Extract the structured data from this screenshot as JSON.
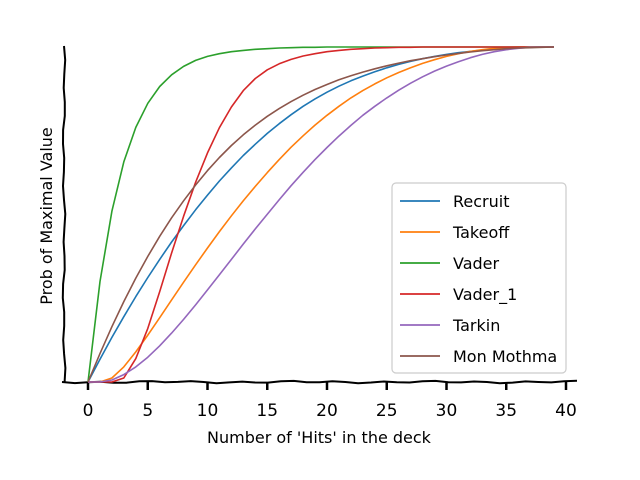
{
  "chart_data": {
    "type": "line",
    "title": "",
    "xlabel": "Number of 'Hits' in the deck",
    "ylabel": "Prob of Maximal Value",
    "xlim": [
      -2,
      41
    ],
    "ylim": [
      0,
      1
    ],
    "xticks": [
      0,
      5,
      10,
      15,
      20,
      25,
      30,
      35,
      40
    ],
    "yticks_shown": false,
    "grid": false,
    "legend_position": "lower-right",
    "x": [
      0,
      1,
      2,
      3,
      4,
      5,
      6,
      7,
      8,
      9,
      10,
      11,
      12,
      13,
      14,
      15,
      16,
      17,
      18,
      19,
      20,
      21,
      22,
      23,
      24,
      25,
      26,
      27,
      28,
      29,
      30,
      31,
      32,
      33,
      34,
      35,
      36,
      37,
      38,
      39
    ],
    "series": [
      {
        "name": "Recruit",
        "color": "#1f77b4",
        "values": [
          0.0,
          0.068,
          0.133,
          0.195,
          0.255,
          0.312,
          0.366,
          0.418,
          0.467,
          0.514,
          0.558,
          0.6,
          0.639,
          0.676,
          0.71,
          0.742,
          0.771,
          0.798,
          0.823,
          0.845,
          0.865,
          0.883,
          0.899,
          0.913,
          0.926,
          0.938,
          0.948,
          0.957,
          0.965,
          0.972,
          0.978,
          0.983,
          0.987,
          0.991,
          0.994,
          0.996,
          0.998,
          0.999,
          1.0,
          1.0
        ]
      },
      {
        "name": "Takeoff",
        "color": "#ff7f0e",
        "values": [
          0.0,
          0.0,
          0.012,
          0.045,
          0.09,
          0.14,
          0.192,
          0.245,
          0.298,
          0.35,
          0.4,
          0.449,
          0.496,
          0.541,
          0.584,
          0.625,
          0.664,
          0.701,
          0.735,
          0.767,
          0.796,
          0.823,
          0.848,
          0.87,
          0.89,
          0.908,
          0.924,
          0.938,
          0.951,
          0.962,
          0.972,
          0.98,
          0.987,
          0.992,
          0.996,
          0.999,
          1.0,
          1.0,
          1.0,
          1.0
        ]
      },
      {
        "name": "Vader",
        "color": "#2ca02c",
        "values": [
          0.0,
          0.3,
          0.51,
          0.657,
          0.76,
          0.832,
          0.882,
          0.917,
          0.942,
          0.96,
          0.972,
          0.98,
          0.986,
          0.99,
          0.993,
          0.995,
          0.997,
          0.998,
          0.999,
          0.999,
          1.0,
          1.0,
          1.0,
          1.0,
          1.0,
          1.0,
          1.0,
          1.0,
          1.0,
          1.0,
          1.0,
          1.0,
          1.0,
          1.0,
          1.0,
          1.0,
          1.0,
          1.0,
          1.0,
          1.0
        ]
      },
      {
        "name": "Vader_1",
        "color": "#d62728",
        "values": [
          0.0,
          0.0,
          0.0,
          0.012,
          0.07,
          0.16,
          0.27,
          0.385,
          0.495,
          0.596,
          0.684,
          0.759,
          0.821,
          0.87,
          0.906,
          0.932,
          0.95,
          0.963,
          0.973,
          0.98,
          0.986,
          0.99,
          0.993,
          0.995,
          0.997,
          0.998,
          0.999,
          0.999,
          1.0,
          1.0,
          1.0,
          1.0,
          1.0,
          1.0,
          1.0,
          1.0,
          1.0,
          1.0,
          1.0,
          1.0
        ]
      },
      {
        "name": "Tarkin",
        "color": "#9467bd",
        "values": [
          0.0,
          0.0,
          0.006,
          0.022,
          0.045,
          0.074,
          0.108,
          0.146,
          0.187,
          0.23,
          0.275,
          0.32,
          0.366,
          0.412,
          0.457,
          0.501,
          0.544,
          0.586,
          0.626,
          0.664,
          0.7,
          0.734,
          0.766,
          0.796,
          0.823,
          0.848,
          0.871,
          0.892,
          0.911,
          0.928,
          0.943,
          0.956,
          0.968,
          0.978,
          0.986,
          0.992,
          0.996,
          0.999,
          1.0,
          1.0
        ]
      },
      {
        "name": "Mon Mothma",
        "color": "#8c564b",
        "values": [
          0.0,
          0.085,
          0.165,
          0.24,
          0.31,
          0.375,
          0.435,
          0.49,
          0.541,
          0.588,
          0.631,
          0.67,
          0.706,
          0.738,
          0.767,
          0.793,
          0.816,
          0.837,
          0.856,
          0.873,
          0.888,
          0.902,
          0.914,
          0.925,
          0.935,
          0.944,
          0.952,
          0.959,
          0.965,
          0.971,
          0.976,
          0.981,
          0.985,
          0.989,
          0.992,
          0.995,
          0.997,
          0.998,
          0.999,
          1.0
        ]
      }
    ]
  }
}
